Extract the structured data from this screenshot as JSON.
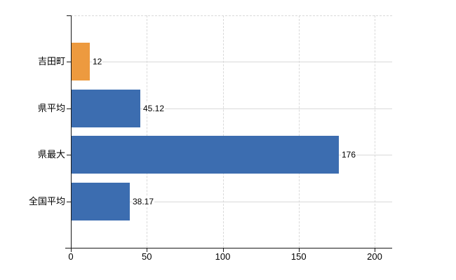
{
  "chart_data": {
    "type": "bar",
    "orientation": "horizontal",
    "title": "",
    "xlabel": "",
    "ylabel": "",
    "categories": [
      "吉田町",
      "県平均",
      "県最大",
      "全国平均"
    ],
    "values": [
      12,
      45.12,
      176,
      38.17
    ],
    "value_labels": [
      "12",
      "45.12",
      "176",
      "38.17"
    ],
    "bar_colors": [
      "#ED9A3F",
      "#3C6DB0",
      "#3C6DB0",
      "#3C6DB0"
    ],
    "highlight_color": "#ED9A3F",
    "default_color": "#3C6DB0",
    "x_ticks": [
      0,
      50,
      100,
      150,
      200
    ],
    "x_tick_labels": [
      "0",
      "50",
      "100",
      "150",
      "200"
    ],
    "xlim": [
      0,
      211.5
    ],
    "legend": "none",
    "grid": {
      "vertical_lines": "dashed",
      "horizontal_lines_at_category_centers": "solid",
      "grid_color": "#d9d9d9",
      "top_border": "dashed"
    },
    "axis_color": "#1a1a1a",
    "background": "#ffffff"
  }
}
